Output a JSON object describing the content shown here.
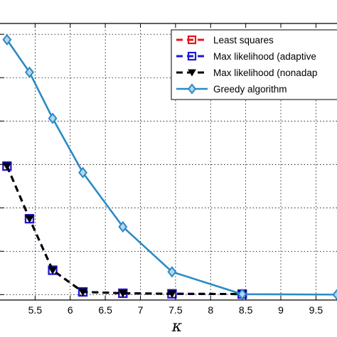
{
  "chart_data": {
    "type": "line",
    "xlabel": "κ",
    "ylabel": "",
    "title": "",
    "xlim": [
      5.0,
      9.8
    ],
    "ylim": [
      -0.02,
      1.0
    ],
    "grid": true,
    "legend_position": "top-right",
    "x_ticks": [
      5.5,
      6,
      6.5,
      7,
      7.5,
      8,
      8.5,
      9,
      9.5
    ],
    "x_tick_labels": [
      "5.5",
      "6",
      "6.5",
      "7",
      "7.5",
      "8",
      "8.5",
      "9",
      "9.5"
    ],
    "y_ticks": [
      0.0,
      0.16,
      0.32,
      0.48,
      0.64,
      0.8,
      0.96
    ],
    "series": [
      {
        "name": "Least squares",
        "color": "#e8141c",
        "line_style": "dashed",
        "marker": "square",
        "x": [
          5.1,
          5.42,
          5.75,
          6.18,
          6.75,
          7.45,
          8.45
        ],
        "y": [
          0.474,
          0.28,
          0.09,
          0.01,
          0.005,
          0.003,
          0.002
        ]
      },
      {
        "name": "Max likelihood (adaptive",
        "color": "#1a1ae0",
        "line_style": "dashed",
        "marker": "square",
        "x": [
          5.1,
          5.42,
          5.75,
          6.18,
          6.75,
          7.45,
          8.45
        ],
        "y": [
          0.474,
          0.28,
          0.09,
          0.01,
          0.005,
          0.003,
          0.002
        ]
      },
      {
        "name": "Max likelihood (nonadap",
        "color": "#000000",
        "line_style": "dashed",
        "marker": "triangle-down",
        "x": [
          5.1,
          5.42,
          5.75,
          6.18,
          6.75,
          7.45,
          8.45
        ],
        "y": [
          0.474,
          0.28,
          0.09,
          0.01,
          0.005,
          0.003,
          0.002
        ]
      },
      {
        "name": "Greedy algorithm",
        "color": "#2b8ac6",
        "line_style": "solid",
        "marker": "diamond",
        "x": [
          5.1,
          5.42,
          5.75,
          6.18,
          6.75,
          7.45,
          8.45,
          9.8
        ],
        "y": [
          0.94,
          0.82,
          0.65,
          0.45,
          0.25,
          0.084,
          0.0015,
          0.0
        ]
      }
    ]
  }
}
